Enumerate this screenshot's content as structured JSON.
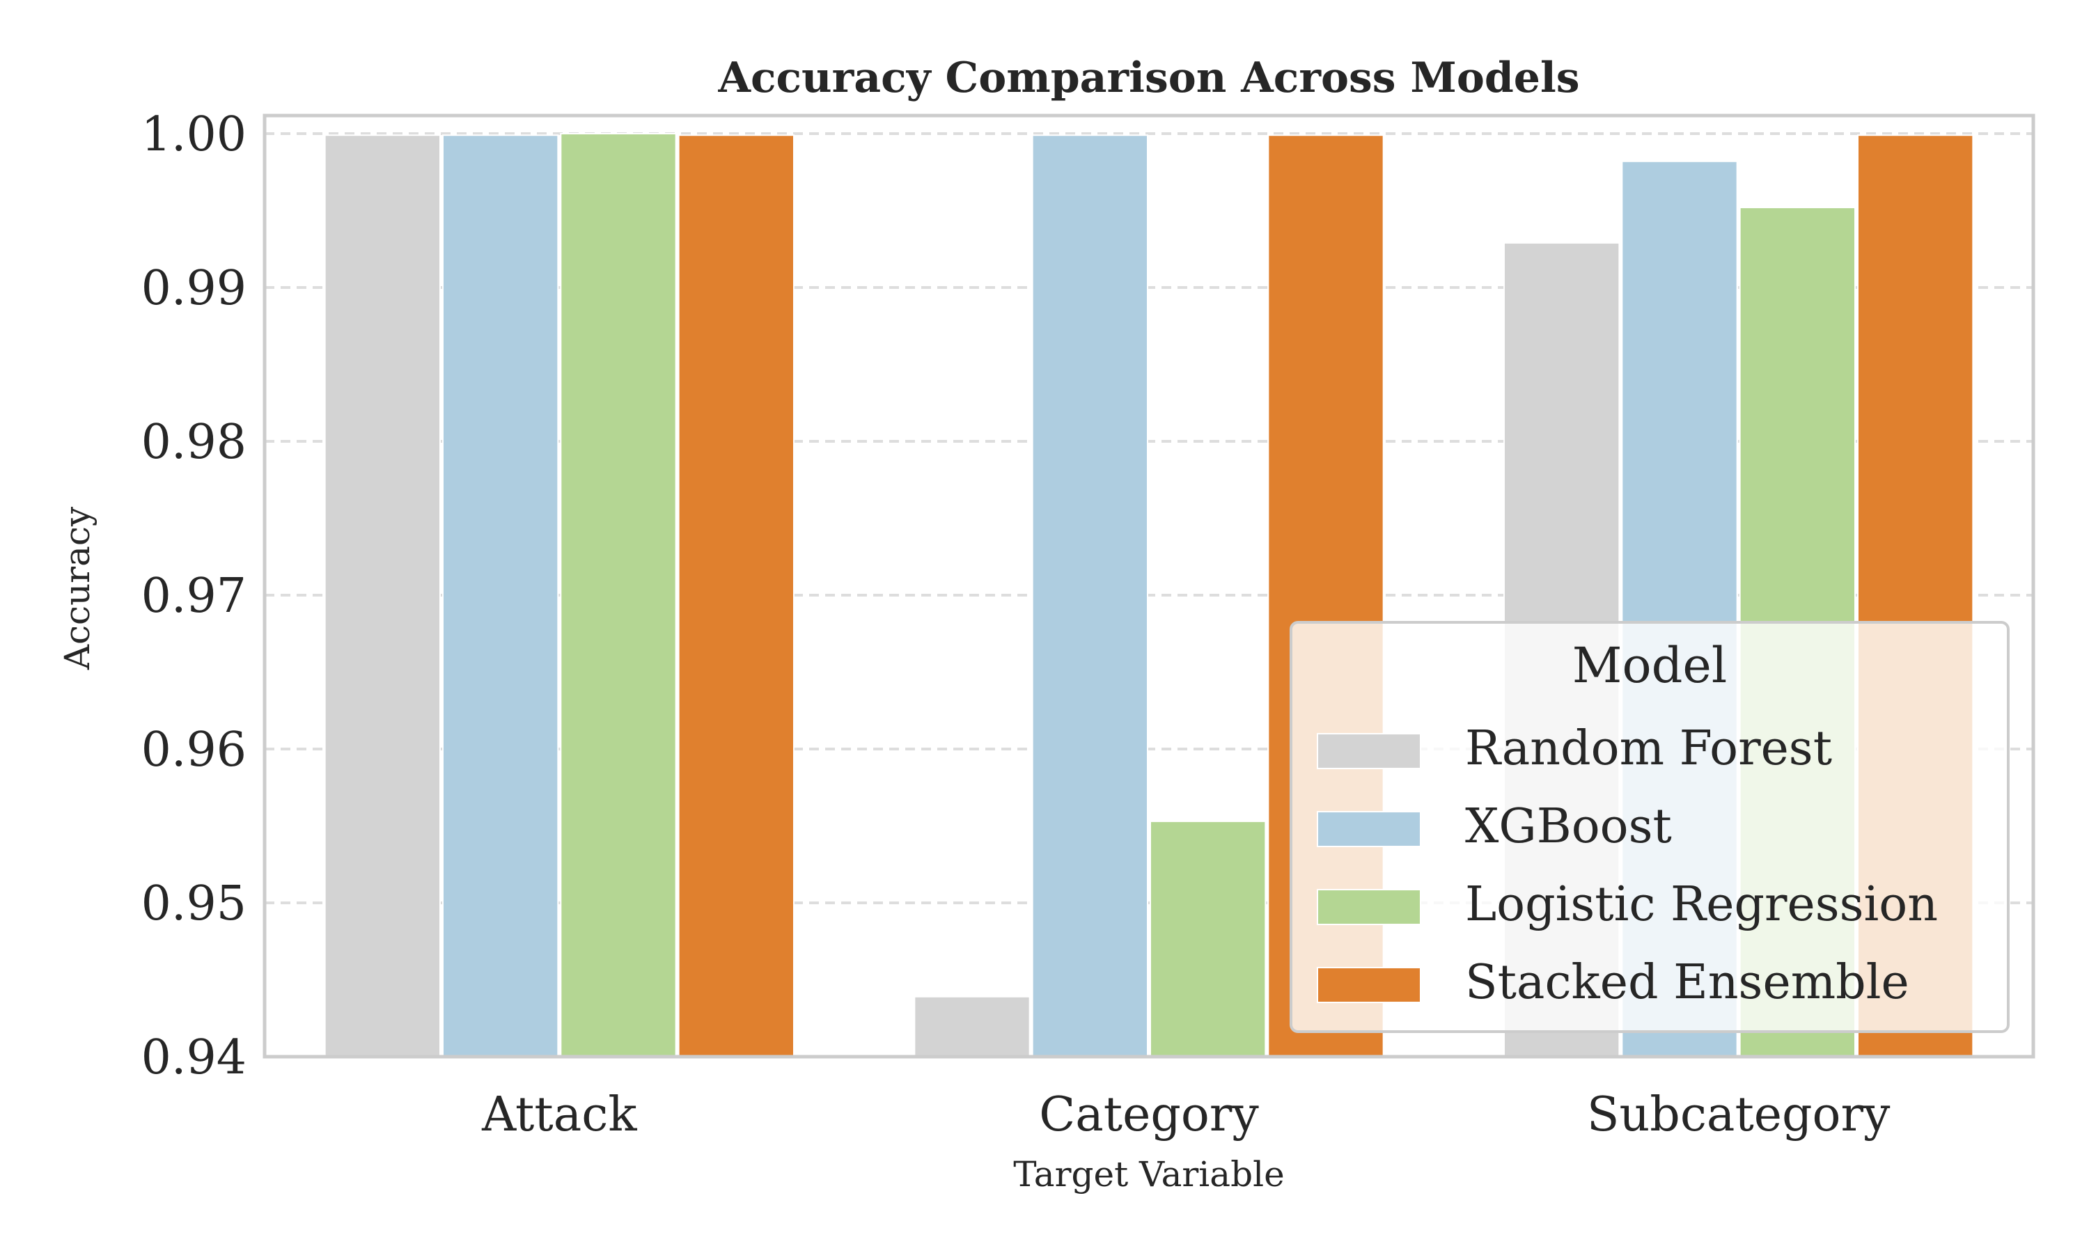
{
  "chart_data": {
    "type": "bar",
    "title": "Accuracy Comparison Across Models",
    "xlabel": "Target Variable",
    "ylabel": "Accuracy",
    "ylim": [
      0.94,
      1.0
    ],
    "yticks": [
      "0.94",
      "0.95",
      "0.96",
      "0.97",
      "0.98",
      "0.99",
      "1.00"
    ],
    "categories": [
      "Attack",
      "Category",
      "Subcategory"
    ],
    "grid": "horizontal-dashed",
    "legend": {
      "title": "Model",
      "placement": "lower-right"
    },
    "series": [
      {
        "name": "Random Forest",
        "color": "#d3d3d3",
        "values": [
          0.9999,
          0.9439,
          0.9929
        ]
      },
      {
        "name": "XGBoost",
        "color": "#aecde0",
        "values": [
          0.9999,
          0.9999,
          0.9982
        ]
      },
      {
        "name": "Logistic Regression",
        "color": "#b4d693",
        "values": [
          1.0,
          0.9553,
          0.9952
        ]
      },
      {
        "name": "Stacked Ensemble",
        "color": "#e0802e",
        "values": [
          0.9999,
          0.9999,
          0.9999
        ]
      }
    ]
  }
}
